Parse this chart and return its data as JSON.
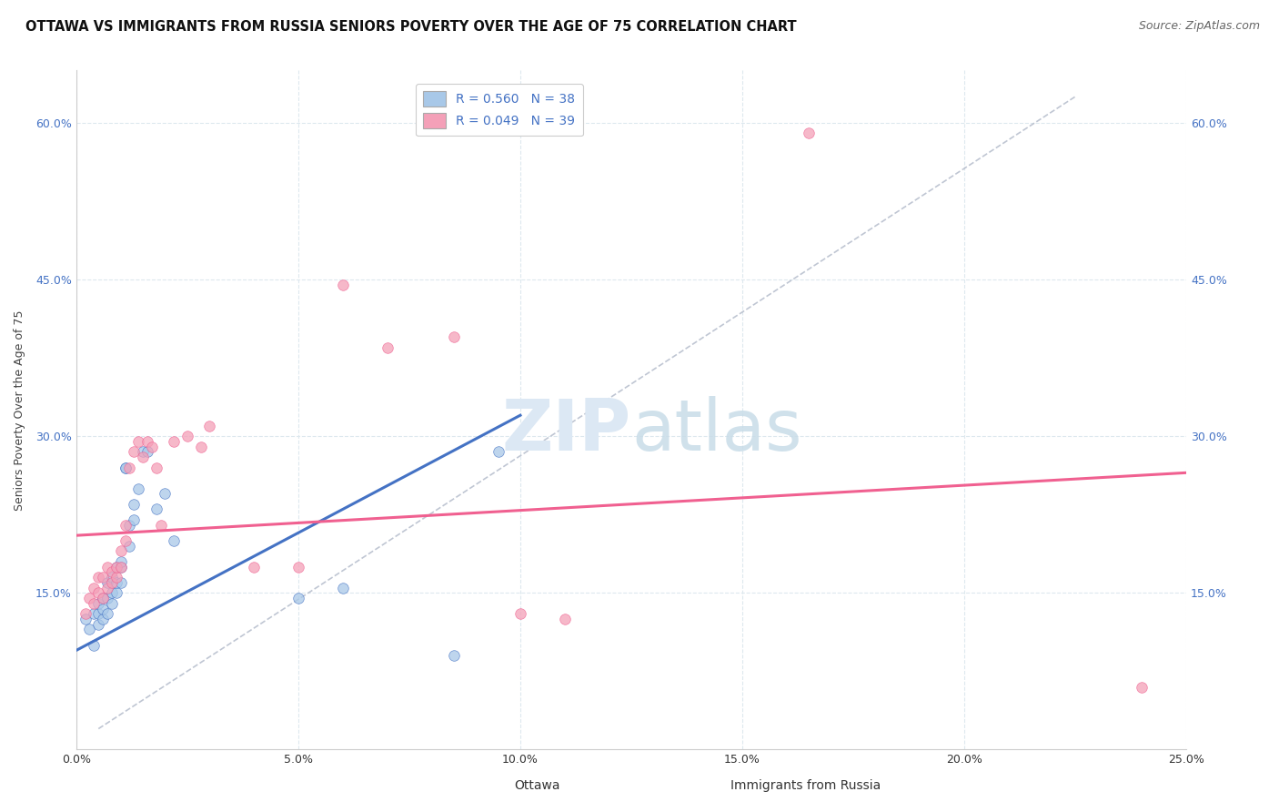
{
  "title": "OTTAWA VS IMMIGRANTS FROM RUSSIA SENIORS POVERTY OVER THE AGE OF 75 CORRELATION CHART",
  "source": "Source: ZipAtlas.com",
  "ylabel": "Seniors Poverty Over the Age of 75",
  "xmin": 0.0,
  "xmax": 0.25,
  "ymin": 0.0,
  "ymax": 0.65,
  "xticks": [
    0.0,
    0.05,
    0.1,
    0.15,
    0.2,
    0.25
  ],
  "yticks": [
    0.15,
    0.3,
    0.45,
    0.6
  ],
  "ytick_labels": [
    "15.0%",
    "30.0%",
    "45.0%",
    "60.0%"
  ],
  "xtick_labels": [
    "0.0%",
    "5.0%",
    "10.0%",
    "15.0%",
    "20.0%",
    "25.0%"
  ],
  "r_ottawa": 0.56,
  "n_ottawa": 38,
  "r_russia": 0.049,
  "n_russia": 39,
  "color_ottawa": "#a8c8e8",
  "color_russia": "#f4a0b8",
  "color_ottawa_line": "#4472c4",
  "color_russia_line": "#f06090",
  "color_diag": "#b0b8c8",
  "color_text_blue": "#4472c4",
  "watermark_color": "#dce8f4",
  "background_color": "#ffffff",
  "grid_color": "#dde8ee",
  "ottawa_x": [
    0.002,
    0.003,
    0.004,
    0.004,
    0.005,
    0.005,
    0.005,
    0.006,
    0.006,
    0.006,
    0.007,
    0.007,
    0.007,
    0.008,
    0.008,
    0.008,
    0.009,
    0.009,
    0.009,
    0.01,
    0.01,
    0.01,
    0.011,
    0.011,
    0.012,
    0.012,
    0.013,
    0.013,
    0.014,
    0.015,
    0.016,
    0.018,
    0.02,
    0.022,
    0.05,
    0.06,
    0.085,
    0.095
  ],
  "ottawa_y": [
    0.125,
    0.115,
    0.1,
    0.13,
    0.12,
    0.13,
    0.14,
    0.125,
    0.145,
    0.135,
    0.13,
    0.145,
    0.16,
    0.14,
    0.15,
    0.165,
    0.15,
    0.16,
    0.175,
    0.16,
    0.175,
    0.18,
    0.27,
    0.27,
    0.195,
    0.215,
    0.22,
    0.235,
    0.25,
    0.285,
    0.285,
    0.23,
    0.245,
    0.2,
    0.145,
    0.155,
    0.09,
    0.285
  ],
  "russia_x": [
    0.002,
    0.003,
    0.004,
    0.004,
    0.005,
    0.005,
    0.006,
    0.006,
    0.007,
    0.007,
    0.008,
    0.008,
    0.009,
    0.009,
    0.01,
    0.01,
    0.011,
    0.011,
    0.012,
    0.013,
    0.014,
    0.015,
    0.016,
    0.017,
    0.018,
    0.019,
    0.022,
    0.025,
    0.028,
    0.03,
    0.04,
    0.05,
    0.06,
    0.07,
    0.085,
    0.1,
    0.11,
    0.165,
    0.24
  ],
  "russia_y": [
    0.13,
    0.145,
    0.14,
    0.155,
    0.15,
    0.165,
    0.145,
    0.165,
    0.155,
    0.175,
    0.16,
    0.17,
    0.165,
    0.175,
    0.175,
    0.19,
    0.2,
    0.215,
    0.27,
    0.285,
    0.295,
    0.28,
    0.295,
    0.29,
    0.27,
    0.215,
    0.295,
    0.3,
    0.29,
    0.31,
    0.175,
    0.175,
    0.445,
    0.385,
    0.395,
    0.13,
    0.125,
    0.59,
    0.06
  ],
  "title_fontsize": 10.5,
  "source_fontsize": 9,
  "label_fontsize": 9,
  "tick_fontsize": 9,
  "legend_fontsize": 10,
  "marker_size": 70,
  "marker_alpha": 0.75
}
